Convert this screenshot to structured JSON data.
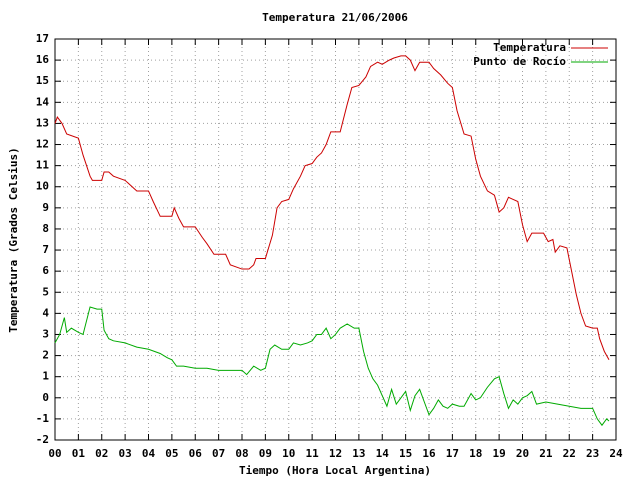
{
  "chart_data": {
    "type": "line",
    "title": "Temperatura 21/06/2006",
    "x_label": "Tiempo (Hora Local Argentina)",
    "y_label": "Temperatura (Grados Celsius)",
    "xlim": [
      0,
      24
    ],
    "xticks": [
      {
        "value": 0,
        "label": "00"
      },
      {
        "value": 1,
        "label": "01"
      },
      {
        "value": 2,
        "label": "02"
      },
      {
        "value": 3,
        "label": "03"
      },
      {
        "value": 4,
        "label": "04"
      },
      {
        "value": 5,
        "label": "05"
      },
      {
        "value": 6,
        "label": "06"
      },
      {
        "value": 7,
        "label": "07"
      },
      {
        "value": 8,
        "label": "08"
      },
      {
        "value": 9,
        "label": "09"
      },
      10,
      11,
      12,
      13,
      14,
      15,
      16,
      17,
      18,
      19,
      20,
      21,
      22,
      23,
      24
    ],
    "ylim": [
      -2,
      17
    ],
    "yticks": [
      -2,
      -1,
      0,
      1,
      2,
      3,
      4,
      5,
      6,
      7,
      8,
      9,
      10,
      11,
      12,
      13,
      14,
      15,
      16,
      17
    ],
    "grid": true,
    "legend": "top-right",
    "series": [
      {
        "name": "Temperatura",
        "color": "#cc0000",
        "x": [
          0,
          0.1,
          0.3,
          0.5,
          1.0,
          1.2,
          1.5,
          1.6,
          2.0,
          2.1,
          2.3,
          2.5,
          3.0,
          3.5,
          4.0,
          4.2,
          4.5,
          5.0,
          5.1,
          5.3,
          5.5,
          6.0,
          6.3,
          6.5,
          6.8,
          7.0,
          7.3,
          7.5,
          8.0,
          8.3,
          8.5,
          8.6,
          9.0,
          9.3,
          9.5,
          9.7,
          10.0,
          10.2,
          10.5,
          10.7,
          11.0,
          11.2,
          11.4,
          11.6,
          11.8,
          12.0,
          12.2,
          12.5,
          12.7,
          13.0,
          13.3,
          13.5,
          13.8,
          14.0,
          14.3,
          14.5,
          14.8,
          15.0,
          15.2,
          15.4,
          15.6,
          16.0,
          16.2,
          16.5,
          16.8,
          17.0,
          17.2,
          17.5,
          17.8,
          18.0,
          18.2,
          18.5,
          18.8,
          19.0,
          19.2,
          19.4,
          19.6,
          19.8,
          20.0,
          20.2,
          20.4,
          20.6,
          20.9,
          21.1,
          21.3,
          21.4,
          21.6,
          21.9,
          22.1,
          22.3,
          22.5,
          22.7,
          23.0,
          23.2,
          23.3,
          23.5,
          23.7
        ],
        "values": [
          13.0,
          13.3,
          13.0,
          12.5,
          12.3,
          11.5,
          10.5,
          10.3,
          10.3,
          10.7,
          10.7,
          10.5,
          10.3,
          9.8,
          9.8,
          9.3,
          8.6,
          8.6,
          9.0,
          8.5,
          8.1,
          8.1,
          7.6,
          7.3,
          6.8,
          6.8,
          6.8,
          6.3,
          6.1,
          6.1,
          6.3,
          6.6,
          6.6,
          7.7,
          9.0,
          9.3,
          9.4,
          9.9,
          10.5,
          11.0,
          11.1,
          11.4,
          11.6,
          12.0,
          12.6,
          12.6,
          12.6,
          13.9,
          14.7,
          14.8,
          15.2,
          15.7,
          15.9,
          15.8,
          16.0,
          16.1,
          16.2,
          16.2,
          16.0,
          15.5,
          15.9,
          15.9,
          15.6,
          15.3,
          14.9,
          14.7,
          13.6,
          12.5,
          12.4,
          11.3,
          10.5,
          9.8,
          9.6,
          8.8,
          9.0,
          9.5,
          9.4,
          9.3,
          8.2,
          7.4,
          7.8,
          7.8,
          7.8,
          7.4,
          7.5,
          6.9,
          7.2,
          7.1,
          6.0,
          4.9,
          4.0,
          3.4,
          3.3,
          3.3,
          2.8,
          2.2,
          1.8
        ]
      },
      {
        "name": "Punto de Rocío",
        "color": "#00aa00",
        "x": [
          0,
          0.2,
          0.4,
          0.5,
          0.7,
          1.0,
          1.2,
          1.5,
          1.8,
          2.0,
          2.1,
          2.3,
          2.5,
          3.0,
          3.5,
          4.0,
          4.5,
          4.8,
          5.0,
          5.2,
          5.5,
          6.0,
          6.5,
          7.0,
          7.5,
          8.0,
          8.2,
          8.5,
          8.8,
          9.0,
          9.2,
          9.4,
          9.7,
          10.0,
          10.2,
          10.5,
          10.8,
          11.0,
          11.2,
          11.4,
          11.6,
          11.8,
          12.0,
          12.2,
          12.5,
          12.8,
          13.0,
          13.2,
          13.4,
          13.6,
          13.8,
          14.0,
          14.2,
          14.4,
          14.6,
          14.8,
          15.0,
          15.2,
          15.4,
          15.6,
          15.8,
          16.0,
          16.2,
          16.4,
          16.6,
          16.8,
          17.0,
          17.3,
          17.5,
          17.8,
          18.0,
          18.2,
          18.5,
          18.8,
          19.0,
          19.2,
          19.4,
          19.6,
          19.8,
          20.0,
          20.2,
          20.4,
          20.6,
          21.0,
          21.5,
          22.0,
          22.5,
          23.0,
          23.2,
          23.4,
          23.6,
          23.7
        ],
        "values": [
          2.6,
          3.0,
          3.8,
          3.1,
          3.3,
          3.1,
          3.0,
          4.3,
          4.2,
          4.2,
          3.2,
          2.8,
          2.7,
          2.6,
          2.4,
          2.3,
          2.1,
          1.9,
          1.8,
          1.5,
          1.5,
          1.4,
          1.4,
          1.3,
          1.3,
          1.3,
          1.1,
          1.5,
          1.3,
          1.4,
          2.3,
          2.5,
          2.3,
          2.3,
          2.6,
          2.5,
          2.6,
          2.7,
          3.0,
          3.0,
          3.3,
          2.8,
          3.0,
          3.3,
          3.5,
          3.3,
          3.3,
          2.2,
          1.4,
          0.9,
          0.6,
          0.1,
          -0.4,
          0.4,
          -0.3,
          0.0,
          0.3,
          -0.6,
          0.1,
          0.4,
          -0.2,
          -0.8,
          -0.5,
          -0.1,
          -0.4,
          -0.5,
          -0.3,
          -0.4,
          -0.4,
          0.2,
          -0.1,
          0.0,
          0.5,
          0.9,
          1.0,
          0.2,
          -0.5,
          -0.1,
          -0.3,
          0.0,
          0.1,
          0.3,
          -0.3,
          -0.2,
          -0.3,
          -0.4,
          -0.5,
          -0.5,
          -1.0,
          -1.3,
          -1.0,
          -1.1
        ]
      }
    ]
  }
}
